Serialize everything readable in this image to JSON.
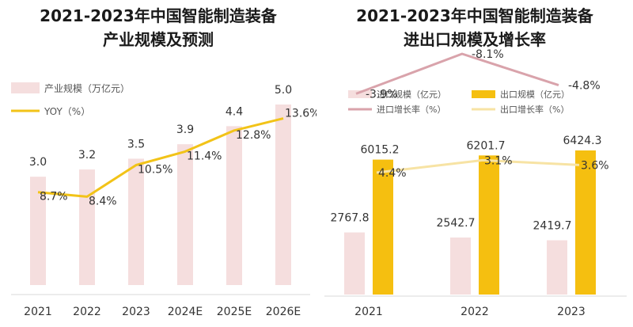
{
  "chart_data": [
    {
      "type": "bar",
      "title_lines": [
        "2021-2023年中国智能制造装备",
        "产业规模及预测"
      ],
      "categories": [
        "2021",
        "2022",
        "2023",
        "2024E",
        "2025E",
        "2026E"
      ],
      "series": [
        {
          "name": "产业规模（万亿元）",
          "type": "bar",
          "values": [
            3.0,
            3.2,
            3.5,
            3.9,
            4.4,
            5.0
          ],
          "color": "#f5dede"
        },
        {
          "name": "YOY（%）",
          "type": "line",
          "values": [
            8.7,
            8.4,
            10.5,
            11.4,
            12.8,
            13.6
          ],
          "color": "#f2c318"
        }
      ],
      "bar_value_labels": [
        "3.0",
        "3.2",
        "3.5",
        "3.9",
        "4.4",
        "5.0"
      ],
      "line_value_labels": [
        "8.7%",
        "8.4%",
        "10.5%",
        "11.4%",
        "12.8%",
        "13.6%"
      ],
      "legend": "top-left",
      "grid": false
    },
    {
      "type": "bar",
      "title_lines": [
        "2021-2023年中国智能制造装备",
        "进出口规模及增长率"
      ],
      "categories": [
        "2021",
        "2022",
        "2023"
      ],
      "series": [
        {
          "name": "进口规模（亿元）",
          "type": "bar",
          "values": [
            2767.8,
            2542.7,
            2419.7
          ],
          "color": "#f5dede"
        },
        {
          "name": "出口规模（亿元）",
          "type": "bar",
          "values": [
            6015.2,
            6201.7,
            6424.3
          ],
          "color": "#f5bf10"
        },
        {
          "name": "进口增长率（%）",
          "type": "line",
          "values": [
            -3.9,
            -8.1,
            -4.8
          ],
          "color": "#d9a3ab"
        },
        {
          "name": "出口增长率（%）",
          "type": "line",
          "values": [
            4.4,
            3.1,
            3.6
          ],
          "color": "#f7e3a4"
        }
      ],
      "import_labels": [
        "2767.8",
        "2542.7",
        "2419.7"
      ],
      "export_labels": [
        "6015.2",
        "6201.7",
        "6424.3"
      ],
      "import_rate_labels": [
        "-3.9%",
        "-8.1%",
        "-4.8%"
      ],
      "export_rate_labels": [
        "4.4%",
        "3.1%",
        "3.6%"
      ],
      "legend": "top",
      "grid": false
    }
  ]
}
